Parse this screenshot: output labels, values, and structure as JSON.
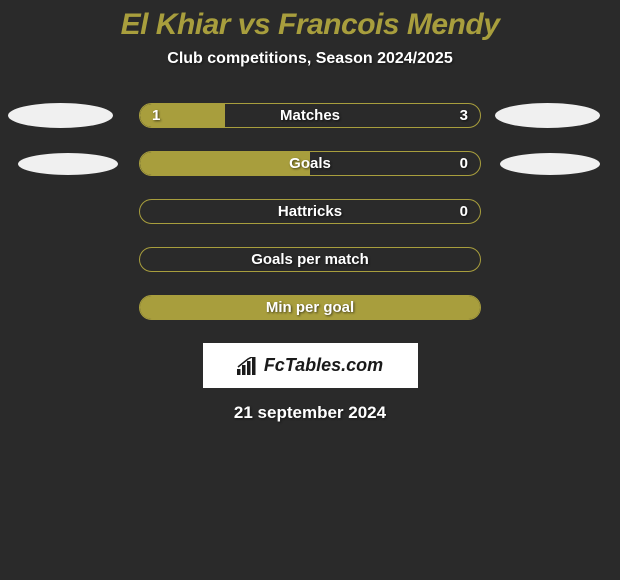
{
  "title": "El Khiar vs Francois Mendy",
  "subtitle": "Club competitions, Season 2024/2025",
  "date": "21 september 2024",
  "logo_text": "FcTables.com",
  "colors": {
    "background": "#2a2a2a",
    "accent": "#a89e3d",
    "text_white": "#ffffff",
    "ellipse_light": "#f0f0f0",
    "ellipse_dark": "#444444",
    "logo_bg": "#ffffff",
    "logo_text": "#1a1a1a"
  },
  "rows": [
    {
      "label": "Matches",
      "left_value": "1",
      "right_value": "3",
      "left_fill_pct": 25,
      "show_left_ellipse": true,
      "show_right_ellipse": true,
      "left_ellipse_color": "light",
      "right_ellipse_color": "light",
      "ellipse_size": "normal"
    },
    {
      "label": "Goals",
      "left_value": "",
      "right_value": "0",
      "left_fill_pct": 50,
      "show_left_ellipse": true,
      "show_right_ellipse": true,
      "left_ellipse_color": "light",
      "right_ellipse_color": "light",
      "ellipse_size": "small"
    },
    {
      "label": "Hattricks",
      "left_value": "",
      "right_value": "0",
      "left_fill_pct": 0,
      "show_left_ellipse": false,
      "show_right_ellipse": false
    },
    {
      "label": "Goals per match",
      "left_value": "",
      "right_value": "",
      "left_fill_pct": 0,
      "show_left_ellipse": false,
      "show_right_ellipse": false
    },
    {
      "label": "Min per goal",
      "left_value": "",
      "right_value": "",
      "left_fill_pct": 100,
      "show_left_ellipse": false,
      "show_right_ellipse": false
    }
  ]
}
